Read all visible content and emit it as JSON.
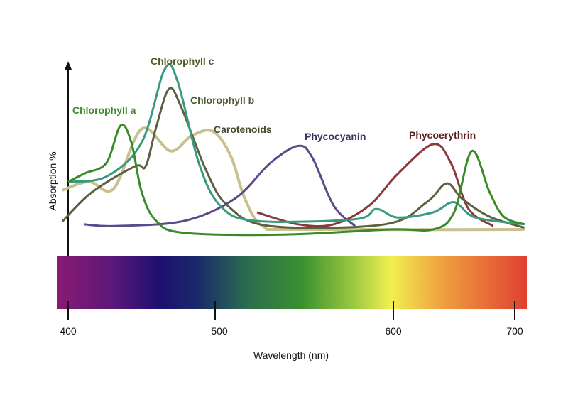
{
  "chart_data": {
    "type": "line",
    "title": "",
    "xlabel": "Wavelength (nm)",
    "ylabel": "Absorption %",
    "x_ticks": [
      400,
      500,
      600,
      700
    ],
    "xlim": [
      396,
      708
    ],
    "ylim": [
      0,
      100
    ],
    "grid": false,
    "legend": "inline labels",
    "spectrum_bar": true,
    "series": [
      {
        "name": "Chlorophyll a",
        "color": "#3a8a2a",
        "points": [
          [
            400,
            33
          ],
          [
            411.6,
            38
          ],
          [
            426,
            44
          ],
          [
            435.7,
            66
          ],
          [
            443,
            56
          ],
          [
            450,
            27
          ],
          [
            459.9,
            10
          ],
          [
            479,
            3
          ],
          [
            538.6,
            2
          ],
          [
            598.4,
            5
          ],
          [
            632.7,
            5
          ],
          [
            650,
            15
          ],
          [
            664.6,
            51
          ],
          [
            679.2,
            27
          ],
          [
            690.9,
            12.5
          ],
          [
            708,
            8
          ]
        ]
      },
      {
        "name": "Chlorophyll c",
        "color": "#3a9a80",
        "points": [
          [
            400,
            33
          ],
          [
            426,
            36
          ],
          [
            450,
            56
          ],
          [
            465.7,
            99
          ],
          [
            474.4,
            92
          ],
          [
            488.9,
            44
          ],
          [
            502.8,
            19
          ],
          [
            522.7,
            10
          ],
          [
            578.5,
            11
          ],
          [
            590.4,
            17
          ],
          [
            603.5,
            12
          ],
          [
            632.7,
            15
          ],
          [
            650,
            21
          ],
          [
            667.5,
            12
          ],
          [
            708,
            8
          ]
        ]
      },
      {
        "name": "Chlorophyll b",
        "color": "#5a6040",
        "points": [
          [
            396,
            9.6
          ],
          [
            416.4,
            27
          ],
          [
            445.4,
            42
          ],
          [
            452.7,
            42
          ],
          [
            459.9,
            65
          ],
          [
            468.6,
            87.5
          ],
          [
            476.8,
            77
          ],
          [
            493.7,
            40
          ],
          [
            507,
            19
          ],
          [
            530.7,
            7
          ],
          [
            595.3,
            8
          ],
          [
            627.5,
            21
          ],
          [
            643.9,
            32
          ],
          [
            656.7,
            23
          ],
          [
            679.2,
            12.5
          ],
          [
            708,
            6
          ]
        ]
      },
      {
        "name": "Carotenoids",
        "color": "#c8c090",
        "points": [
          [
            396,
            28
          ],
          [
            414,
            33
          ],
          [
            431,
            29
          ],
          [
            450,
            64
          ],
          [
            469.6,
            51
          ],
          [
            484,
            60
          ],
          [
            498.6,
            62.5
          ],
          [
            508.8,
            48
          ],
          [
            516.7,
            23
          ],
          [
            526.7,
            7
          ],
          [
            546.6,
            5
          ],
          [
            708,
            5
          ]
        ]
      },
      {
        "name": "Phycocyanin",
        "color": "#5a4a8a",
        "points": [
          [
            410.6,
            8
          ],
          [
            431,
            7
          ],
          [
            479,
            10
          ],
          [
            511,
            23
          ],
          [
            531,
            44
          ],
          [
            546.6,
            54
          ],
          [
            554.6,
            47
          ],
          [
            566.5,
            19
          ],
          [
            578.5,
            7
          ]
        ]
      },
      {
        "name": "Phycoerythrin",
        "color": "#8a3a3a",
        "points": [
          [
            523.5,
            15
          ],
          [
            546.6,
            8
          ],
          [
            566.5,
            8
          ],
          [
            586.4,
            19
          ],
          [
            603.5,
            37.5
          ],
          [
            632.7,
            55
          ],
          [
            647.4,
            44
          ],
          [
            662,
            17
          ],
          [
            682.2,
            7
          ]
        ]
      }
    ],
    "label_colors": {
      "Chlorophyll a": "#3a8a2a",
      "Chlorophyll b": "#4a5a30",
      "Chlorophyll c": "#4a5a20",
      "Carotenoids": "#4a4a30",
      "Phycocyanin": "#3a3060",
      "Phycoerythrin": "#5a2020"
    }
  }
}
